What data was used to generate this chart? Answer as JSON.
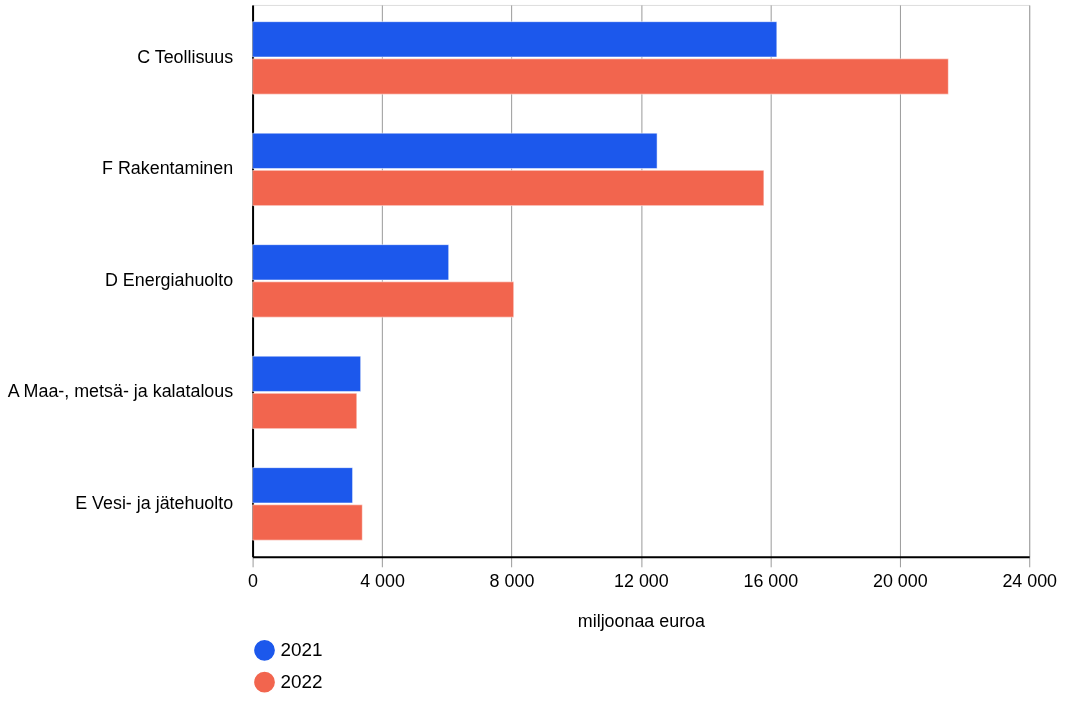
{
  "chart_data": {
    "type": "bar",
    "orientation": "horizontal",
    "xlabel": "miljoonaa euroa",
    "categories": [
      "C Teollisuus",
      "F Rakentaminen",
      "D Energiahuolto",
      "A Maa-, metsä- ja kalatalous",
      "E Vesi- ja jätehuolto"
    ],
    "series": [
      {
        "name": "2021",
        "color": "#1c58ec",
        "values": [
          16200,
          12500,
          6060,
          3340,
          3090
        ]
      },
      {
        "name": "2022",
        "color": "#f2654e",
        "values": [
          21500,
          15800,
          8070,
          3220,
          3390
        ]
      }
    ],
    "xlim": [
      0,
      24000
    ],
    "xticks": [
      0,
      {
        "value": 4000,
        "label": "4 000"
      },
      {
        "value": 8000,
        "label": "8 000"
      },
      {
        "value": 12000,
        "label": "12 000"
      },
      {
        "value": 16000,
        "label": "16 000"
      },
      {
        "value": 20000,
        "label": "20 000"
      },
      {
        "value": 24000,
        "label": "24 000"
      }
    ],
    "grid": "x",
    "legend": "bottom"
  }
}
